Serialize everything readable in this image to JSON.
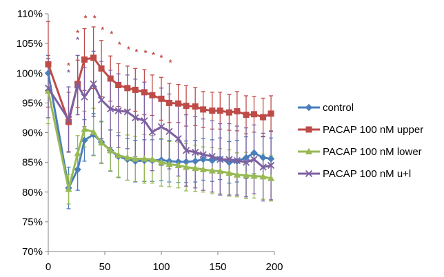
{
  "chart_data": {
    "type": "line",
    "title": "",
    "xlabel": "",
    "ylabel": "",
    "xlim": [
      0,
      200
    ],
    "ylim": [
      70,
      110
    ],
    "x_ticks": [
      0,
      50,
      100,
      150,
      200
    ],
    "y_ticks": [
      "70%",
      "75%",
      "80%",
      "85%",
      "90%",
      "95%",
      "100%",
      "105%",
      "110%"
    ],
    "grid": false,
    "legend_position": "right",
    "x": [
      0,
      18,
      26,
      32,
      40,
      47,
      55,
      62,
      70,
      77,
      85,
      92,
      100,
      107,
      115,
      122,
      130,
      137,
      145,
      152,
      160,
      167,
      175,
      182,
      190,
      197
    ],
    "series": [
      {
        "name": "control",
        "color": "#4a7ebb",
        "marker": "diamond",
        "values": [
          100.0,
          80.7,
          83.8,
          88.7,
          89.7,
          88.4,
          87.0,
          86.0,
          85.5,
          85.2,
          85.3,
          85.3,
          85.4,
          85.2,
          85.1,
          85.1,
          85.2,
          85.5,
          85.3,
          85.6,
          85.0,
          85.2,
          85.8,
          86.6,
          85.8,
          85.6
        ],
        "error": [
          3.0,
          3.5,
          3.5,
          3.5,
          3.5,
          3.5,
          3.5,
          3.5,
          3.5,
          3.5,
          3.5,
          3.5,
          3.5,
          3.5,
          3.5,
          3.5,
          3.5,
          3.5,
          3.5,
          3.5,
          3.5,
          3.5,
          3.5,
          3.5,
          3.5,
          3.5
        ]
      },
      {
        "name": "PACAP 100 nM upper",
        "color": "#be4b48",
        "marker": "square",
        "values": [
          101.5,
          91.8,
          98.2,
          102.3,
          102.6,
          100.8,
          99.1,
          98.0,
          97.5,
          97.2,
          96.8,
          96.3,
          95.7,
          95.0,
          94.9,
          94.5,
          94.4,
          93.9,
          93.7,
          93.7,
          93.4,
          93.6,
          93.0,
          93.1,
          92.6,
          93.2
        ],
        "error": [
          7.2,
          5.0,
          4.0,
          5.2,
          5.2,
          4.7,
          3.8,
          3.6,
          3.7,
          3.6,
          3.8,
          3.4,
          3.6,
          3.3,
          3.2,
          3.4,
          3.2,
          3.0,
          3.1,
          3.1,
          3.0,
          3.3,
          3.2,
          3.0,
          3.2,
          3.0
        ]
      },
      {
        "name": "PACAP 100 nM lower",
        "color": "#98b954",
        "marker": "triangle",
        "values": [
          97.0,
          80.5,
          86.5,
          90.6,
          90.1,
          88.3,
          87.0,
          86.2,
          85.8,
          85.6,
          85.6,
          85.5,
          85.0,
          84.7,
          84.5,
          84.2,
          84.0,
          83.8,
          83.6,
          83.5,
          83.2,
          82.9,
          82.8,
          82.7,
          82.6,
          82.3
        ],
        "error": [
          5.5,
          2.5,
          3.0,
          3.0,
          4.0,
          3.5,
          3.4,
          3.8,
          3.8,
          3.8,
          4.1,
          4.0,
          4.0,
          3.8,
          3.8,
          4.0,
          3.9,
          3.8,
          3.9,
          3.8,
          3.9,
          3.7,
          3.9,
          3.7,
          3.8,
          3.8
        ]
      },
      {
        "name": "PACAP 100 nM u+l",
        "color": "#7d60a0",
        "marker": "x",
        "values": [
          97.5,
          92.2,
          98.0,
          96.0,
          98.2,
          95.5,
          94.0,
          93.7,
          93.5,
          92.5,
          92.0,
          90.1,
          91.0,
          90.2,
          89.0,
          87.0,
          86.7,
          86.3,
          86.0,
          85.5,
          85.5,
          85.3,
          85.0,
          85.5,
          84.2,
          84.5
        ],
        "error": [
          5.0,
          5.5,
          5.0,
          5.0,
          5.5,
          6.5,
          6.5,
          6.2,
          6.2,
          6.5,
          6.5,
          6.5,
          6.5,
          6.3,
          6.3,
          6.0,
          6.0,
          6.0,
          6.0,
          6.0,
          6.0,
          5.8,
          5.8,
          5.8,
          5.7,
          5.8
        ]
      }
    ],
    "annotations": [
      {
        "text": "*",
        "x": 18,
        "y": 101.5,
        "color": "#be4b48"
      },
      {
        "text": "*",
        "x": 18,
        "y": 100.3,
        "color": "#7d60a0"
      },
      {
        "text": "*",
        "x": 26,
        "y": 107.0,
        "color": "#be4b48"
      },
      {
        "text": "*",
        "x": 26,
        "y": 105.8,
        "color": "#7d60a0"
      },
      {
        "text": "*",
        "x": 33,
        "y": 109.5,
        "color": "#be4b48"
      },
      {
        "text": "*",
        "x": 41,
        "y": 109.5,
        "color": "#be4b48"
      },
      {
        "text": "*",
        "x": 48,
        "y": 107.5,
        "color": "#be4b48"
      },
      {
        "text": "*",
        "x": 56,
        "y": 106.8,
        "color": "#be4b48"
      },
      {
        "text": "*",
        "x": 63,
        "y": 105.0,
        "color": "#be4b48"
      },
      {
        "text": "*",
        "x": 71,
        "y": 104.2,
        "color": "#be4b48"
      },
      {
        "text": "*",
        "x": 78,
        "y": 103.8,
        "color": "#be4b48"
      },
      {
        "text": "*",
        "x": 86,
        "y": 103.6,
        "color": "#be4b48"
      },
      {
        "text": "*",
        "x": 93,
        "y": 103.3,
        "color": "#be4b48"
      },
      {
        "text": "*",
        "x": 100,
        "y": 102.8,
        "color": "#be4b48"
      },
      {
        "text": "*",
        "x": 108,
        "y": 102.0,
        "color": "#be4b48"
      }
    ]
  }
}
